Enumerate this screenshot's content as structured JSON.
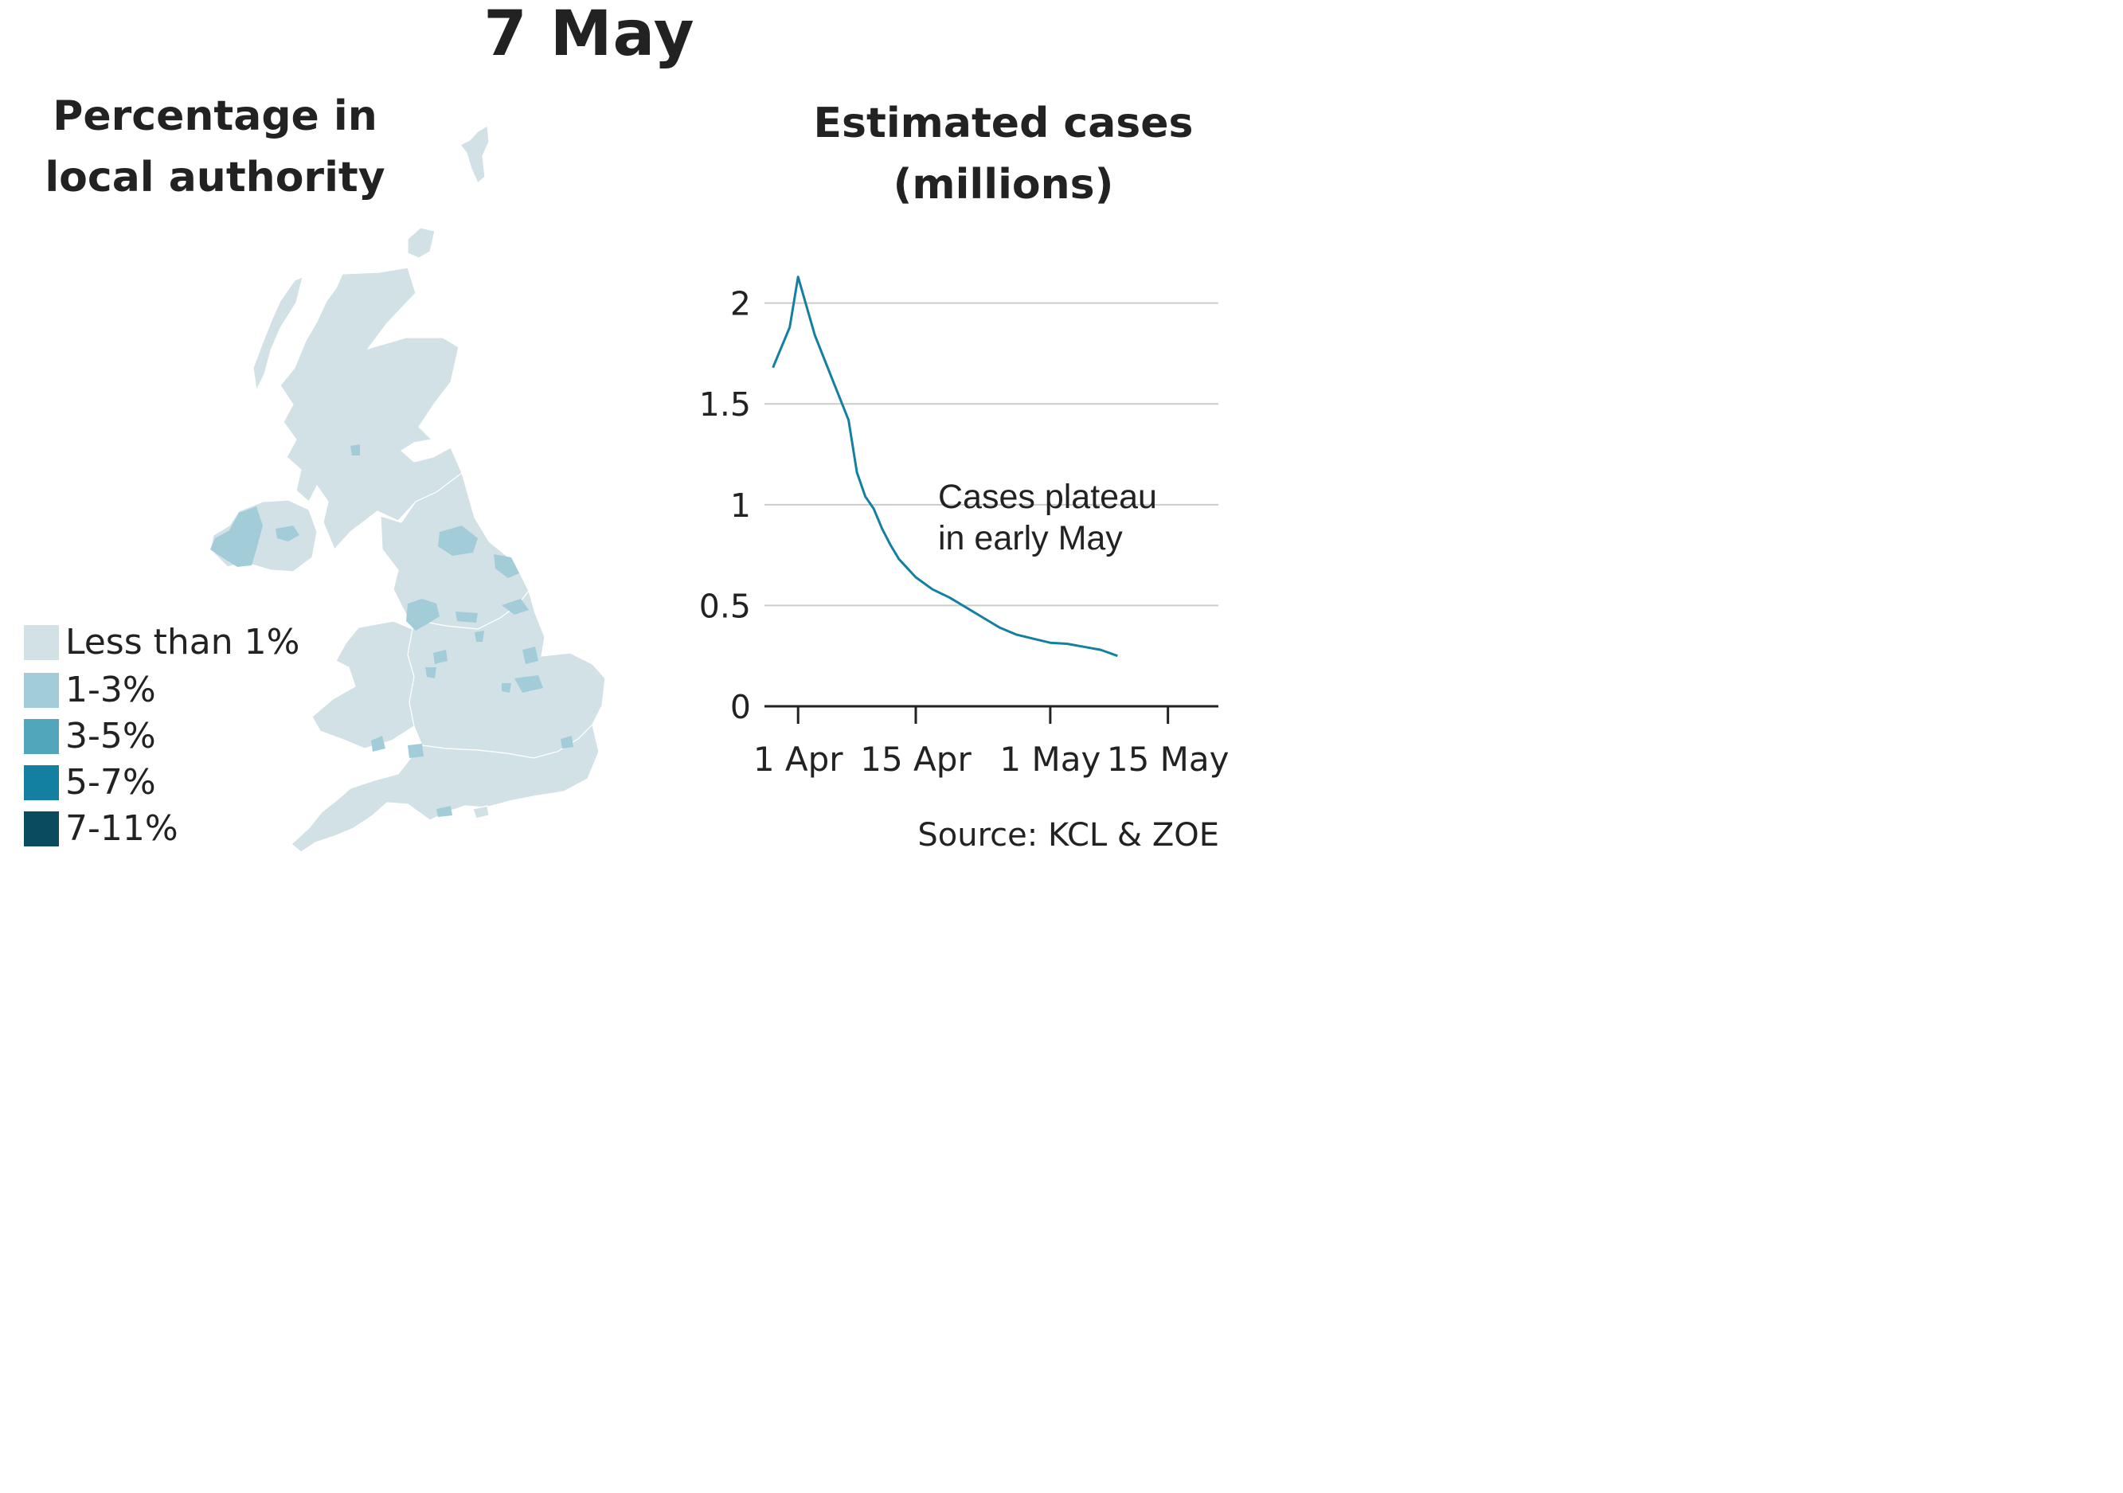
{
  "title": "7 May",
  "map": {
    "title_line1": "Percentage in",
    "title_line2": "local authority",
    "legend": [
      {
        "label": "Less than 1%",
        "color": "#d1e1e5"
      },
      {
        "label": "1-3%",
        "color": "#a3ccd9"
      },
      {
        "label": "3-5%",
        "color": "#52a6bb"
      },
      {
        "label": "5-7%",
        "color": "#1380a1"
      },
      {
        "label": "7-11%",
        "color": "#0a4b5f"
      }
    ]
  },
  "chart": {
    "title_line1": "Estimated cases",
    "title_line2": "(millions)",
    "annotation_line1": "Cases plateau",
    "annotation_line2": "in early May",
    "source": "Source: KCL & ZOE",
    "line_color": "#1380a1"
  },
  "chart_data": {
    "type": "line",
    "title": "Estimated cases (millions)",
    "x_ticks": [
      "1 Apr",
      "15 Apr",
      "1 May",
      "15 May"
    ],
    "y_ticks": [
      "0",
      "0.5",
      "1",
      "1.5",
      "2"
    ],
    "ylim": [
      0,
      2.2
    ],
    "xlim": [
      "2020-03-28",
      "2020-05-21"
    ],
    "grid": true,
    "series": [
      {
        "x": [
          "2020-03-29",
          "2020-03-31",
          "2020-04-01",
          "2020-04-03",
          "2020-04-05",
          "2020-04-07",
          "2020-04-08",
          "2020-04-09",
          "2020-04-10",
          "2020-04-11",
          "2020-04-12",
          "2020-04-13",
          "2020-04-15",
          "2020-04-17",
          "2020-04-19",
          "2020-04-21",
          "2020-04-23",
          "2020-04-25",
          "2020-04-27",
          "2020-04-29",
          "2020-05-01",
          "2020-05-03",
          "2020-05-05",
          "2020-05-07",
          "2020-05-08",
          "2020-05-09"
        ],
        "y": [
          1.68,
          1.88,
          2.13,
          1.84,
          1.63,
          1.42,
          1.16,
          1.04,
          0.98,
          0.88,
          0.8,
          0.73,
          0.64,
          0.58,
          0.54,
          0.49,
          0.44,
          0.39,
          0.355,
          0.335,
          0.315,
          0.31,
          0.295,
          0.28,
          0.265,
          0.25
        ]
      }
    ]
  }
}
